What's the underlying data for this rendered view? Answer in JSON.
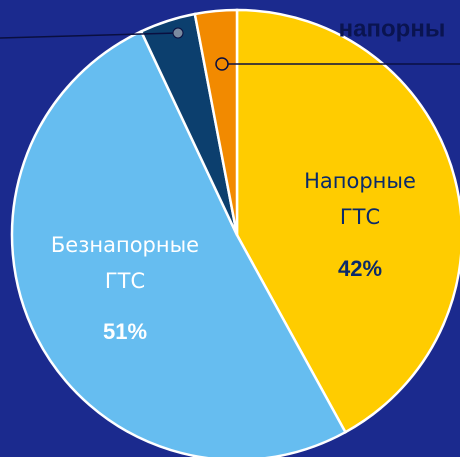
{
  "chart_data": {
    "type": "pie",
    "categories": [
      "Напорные ГТС",
      "Безнапорные ГТС",
      null,
      null
    ],
    "values": [
      42,
      51,
      4,
      3
    ],
    "value_labels": [
      "42%",
      "51%",
      null,
      null
    ],
    "colors": [
      "#ffcc00",
      "#66bdf0",
      "#0c3f6e",
      "#f28a00"
    ],
    "annotations": [
      "напорны"
    ]
  }
}
